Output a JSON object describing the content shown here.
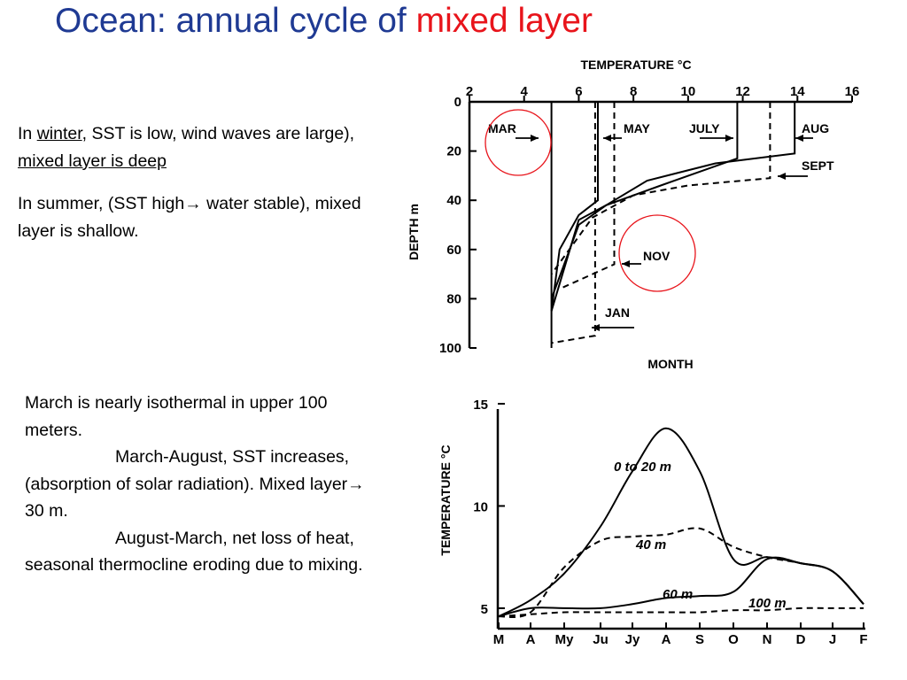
{
  "title": {
    "main": "Ocean: annual cycle of ",
    "highlight": "mixed layer"
  },
  "text1": {
    "p1_in": "In ",
    "p1_winter": "winter",
    "p1_mid": ", SST is low, wind waves are large), ",
    "p1_deep": "mixed layer is deep",
    "p2_start": "In summer, (SST high",
    "p2_end": " water stable), mixed layer is shallow."
  },
  "text2": {
    "l1": "March is nearly isothermal in upper 100 meters.",
    "l2": "March-August, SST increases, (absorption of solar radiation). Mixed layer",
    "l2_end": " 30 m.",
    "l3": "August-March, net loss of heat, seasonal thermocline eroding due to mixing."
  },
  "arrow_glyph": "→",
  "colors": {
    "title": "#1f3a93",
    "highlight": "#e8141b",
    "circle": "#e8141b"
  },
  "chart_data": [
    {
      "type": "line",
      "xlabel": "TEMPERATURE °C",
      "ylabel": "DEPTH m",
      "bottom_label": "MONTH",
      "x_ticks": [
        "2",
        "4",
        "6",
        "8",
        "10",
        "12",
        "14",
        "16"
      ],
      "y_ticks": [
        "0",
        "20",
        "40",
        "60",
        "80",
        "100"
      ],
      "xlim": [
        2,
        16
      ],
      "ylim": [
        100,
        0
      ],
      "series": [
        {
          "name": "MAR",
          "style": "solid",
          "x": [
            5,
            5,
            5
          ],
          "y": [
            0,
            85,
            100
          ]
        },
        {
          "name": "MAY",
          "style": "solid",
          "x": [
            6.7,
            6.7,
            6.0,
            5.3,
            5.0
          ],
          "y": [
            0,
            40,
            46,
            60,
            85
          ]
        },
        {
          "name": "JULY",
          "style": "solid",
          "x": [
            11.8,
            11.8,
            9,
            7,
            6,
            5.0
          ],
          "y": [
            0,
            23,
            34,
            42,
            48,
            85
          ]
        },
        {
          "name": "AUG",
          "style": "solid",
          "x": [
            13.9,
            13.9,
            11,
            8.5,
            7,
            6.0,
            5.0
          ],
          "y": [
            0,
            21,
            25,
            32,
            42,
            50,
            80
          ]
        },
        {
          "name": "SEPT",
          "style": "dashed",
          "x": [
            13,
            13,
            10,
            8,
            6.5,
            5.0
          ],
          "y": [
            0,
            31,
            34,
            38,
            47,
            70
          ]
        },
        {
          "name": "NOV",
          "style": "dashed",
          "x": [
            7.3,
            7.3,
            6.5,
            5.3
          ],
          "y": [
            0,
            66,
            70,
            76
          ]
        },
        {
          "name": "JAN",
          "style": "dashed",
          "x": [
            6.6,
            6.6,
            5.0
          ],
          "y": [
            0,
            95,
            98
          ]
        }
      ],
      "annotations": [
        "MAR",
        "MAY",
        "JULY",
        "AUG",
        "SEPT",
        "NOV",
        "JAN"
      ],
      "circled": [
        "MAR",
        "NOV"
      ]
    },
    {
      "type": "line",
      "ylabel": "TEMPERATURE °C",
      "categories": [
        "M",
        "A",
        "My",
        "Ju",
        "Jy",
        "A",
        "S",
        "O",
        "N",
        "D",
        "J",
        "F"
      ],
      "y_ticks": [
        "5",
        "10",
        "15"
      ],
      "ylim": [
        4,
        15
      ],
      "series": [
        {
          "name": "0 to 20 m",
          "style": "solid",
          "values": [
            4.6,
            5.4,
            6.7,
            9.0,
            11.7,
            13.8,
            11.7,
            7.4,
            7.5,
            7.2,
            6.8,
            5.2
          ]
        },
        {
          "name": "40 m",
          "style": "dashed",
          "values": [
            4.6,
            4.8,
            7.0,
            8.3,
            8.5,
            8.6,
            8.9,
            8.0,
            7.5,
            7.2,
            6.8,
            5.2
          ]
        },
        {
          "name": "60 m",
          "style": "solid",
          "values": [
            4.6,
            5.0,
            5.0,
            5.0,
            5.2,
            5.5,
            5.6,
            5.8,
            7.4,
            7.2,
            6.8,
            5.2
          ]
        },
        {
          "name": "100 m",
          "style": "dashed",
          "values": [
            4.6,
            4.7,
            4.8,
            4.8,
            4.8,
            4.8,
            4.8,
            4.9,
            4.9,
            5.0,
            5.0,
            5.0
          ]
        }
      ]
    }
  ]
}
